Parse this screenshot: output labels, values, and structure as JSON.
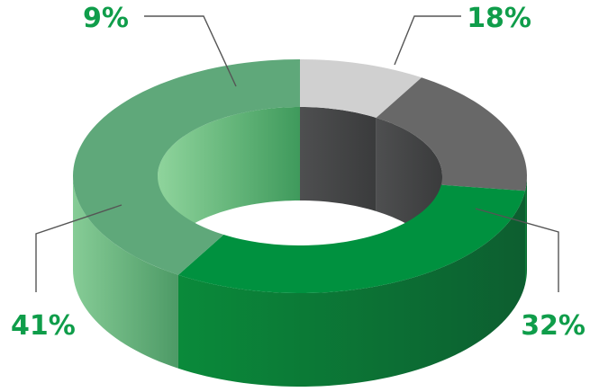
{
  "chart_data": {
    "type": "pie",
    "style": "3d-donut",
    "slices": [
      {
        "label": "9%",
        "value": 9,
        "color": "#d0d0d0"
      },
      {
        "label": "18%",
        "value": 18,
        "color": "#686868"
      },
      {
        "label": "32%",
        "value": 32,
        "color": "#00913f"
      },
      {
        "label": "41%",
        "value": 41,
        "color": "#5fa87a"
      }
    ],
    "title": "",
    "legend": "none"
  }
}
